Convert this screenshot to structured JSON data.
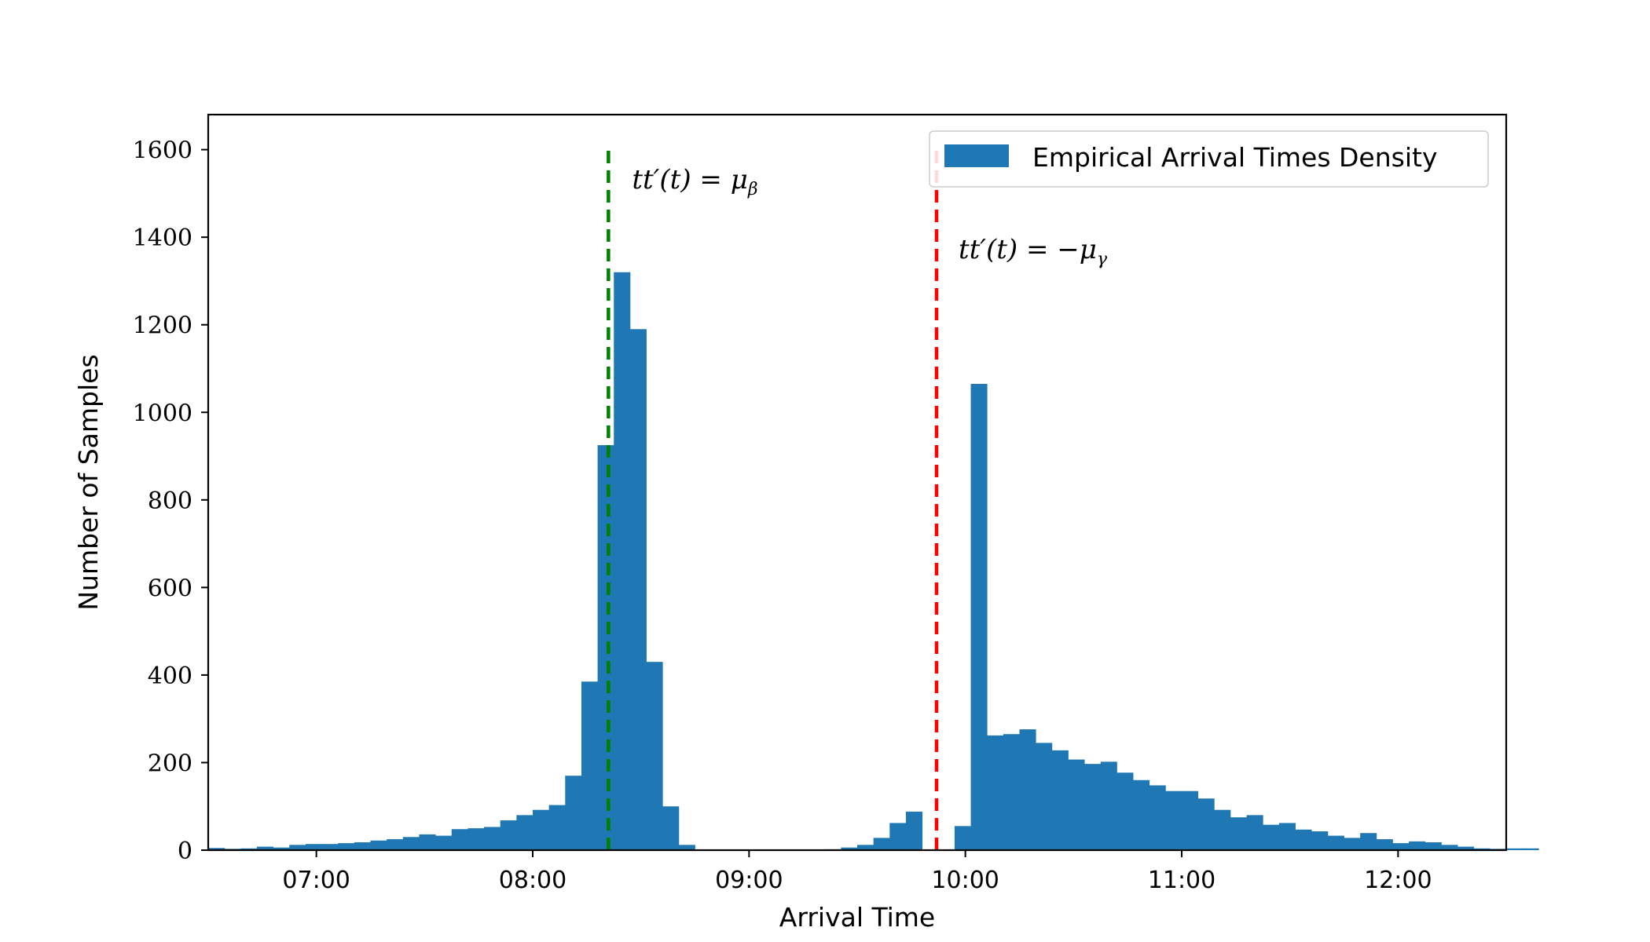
{
  "chart_data": {
    "type": "bar",
    "subtype": "histogram",
    "title": "",
    "xlabel": "Arrival Time",
    "ylabel": "Number of Samples",
    "x_unit": "time of day",
    "x_range": [
      "06:30",
      "12:30"
    ],
    "ylim": [
      0,
      1680
    ],
    "x_ticks": [
      "07:00",
      "08:00",
      "09:00",
      "10:00",
      "11:00",
      "12:00"
    ],
    "y_ticks": [
      0,
      200,
      400,
      600,
      800,
      1000,
      1200,
      1400,
      1600
    ],
    "grid": false,
    "legend": {
      "placement": "top-right",
      "entries": [
        "Empirical Arrival Times Density"
      ]
    },
    "bin_width_minutes": 4.5,
    "first_bin_start": "06:30",
    "series": [
      {
        "name": "Empirical Arrival Times Density",
        "color": "#1f77b4",
        "values": [
          5,
          3,
          4,
          8,
          6,
          12,
          14,
          14,
          16,
          18,
          22,
          25,
          30,
          36,
          33,
          48,
          50,
          53,
          68,
          80,
          92,
          103,
          170,
          385,
          925,
          1320,
          1190,
          430,
          100,
          12,
          0,
          0,
          0,
          0,
          0,
          0,
          0,
          0,
          2,
          6,
          12,
          28,
          62,
          88,
          0,
          0,
          55,
          1065,
          262,
          265,
          276,
          245,
          228,
          207,
          197,
          202,
          177,
          160,
          148,
          135,
          135,
          118,
          92,
          75,
          80,
          58,
          62,
          47,
          43,
          33,
          28,
          39,
          25,
          16,
          20,
          18,
          12,
          8,
          4,
          3,
          4,
          4
        ]
      }
    ],
    "annotations": [
      {
        "type": "vline",
        "time": "08:21",
        "ymax": 1600,
        "style": "dashed",
        "color": "#008000",
        "text_main": "tt′(t) = μ",
        "text_sub": "β"
      },
      {
        "type": "vline",
        "time": "09:52",
        "ymax": 1600,
        "style": "dashed",
        "color": "#ff0000",
        "text_main": "tt′(t) = −μ",
        "text_sub": "γ"
      }
    ]
  }
}
